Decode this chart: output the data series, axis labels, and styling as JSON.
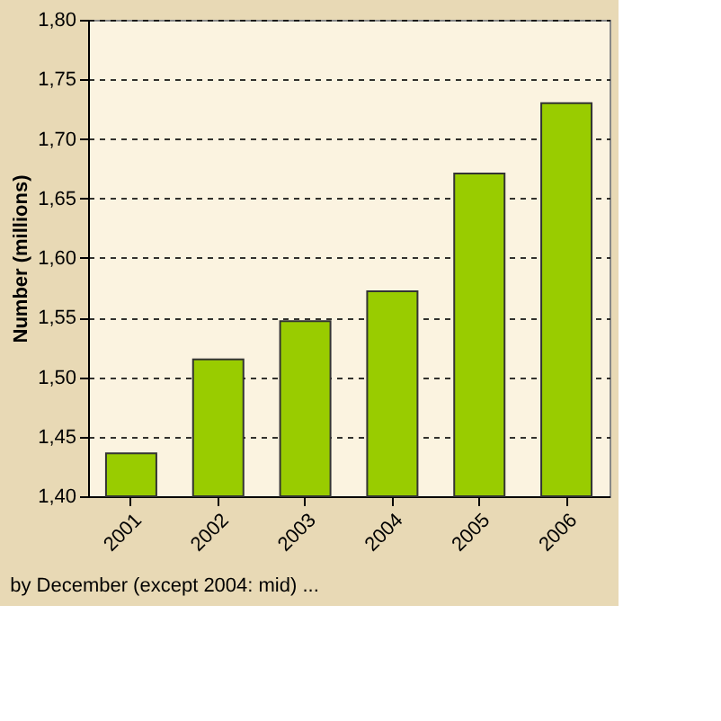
{
  "chart_data": {
    "type": "bar",
    "ylabel": "Number (millions)",
    "categories": [
      "2001",
      "2002",
      "2003",
      "2004",
      "2005",
      "2006"
    ],
    "values": [
      1.436,
      1.515,
      1.547,
      1.572,
      1.671,
      1.73
    ],
    "color": "#99cc00",
    "ylim": [
      1.4,
      1.8
    ],
    "yticks": [
      {
        "value": 1.4,
        "label": "1,40"
      },
      {
        "value": 1.45,
        "label": "1,45"
      },
      {
        "value": 1.5,
        "label": "1,50"
      },
      {
        "value": 1.55,
        "label": "1,55"
      },
      {
        "value": 1.6,
        "label": "1,60"
      },
      {
        "value": 1.65,
        "label": "1,65"
      },
      {
        "value": 1.7,
        "label": "1,70"
      },
      {
        "value": 1.75,
        "label": "1,75"
      },
      {
        "value": 1.8,
        "label": "1,80"
      }
    ],
    "grid": "y",
    "annotations": [
      "by December (except 2004: mid) ..."
    ]
  }
}
